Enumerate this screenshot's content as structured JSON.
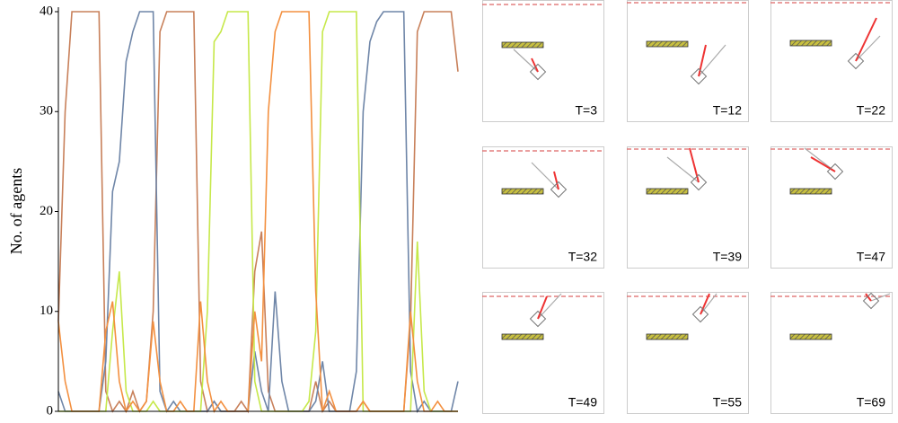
{
  "chart_data": {
    "type": "line",
    "y_label": "No. of agents",
    "x": [
      0,
      1,
      2,
      3,
      4,
      5,
      6,
      7,
      8,
      9,
      10,
      11,
      12,
      13,
      14,
      15,
      16,
      17,
      18,
      19,
      20,
      21,
      22,
      23,
      24,
      25,
      26,
      27,
      28,
      29,
      30,
      31,
      32,
      33,
      34,
      35,
      36,
      37,
      38,
      39,
      40,
      41,
      42,
      43,
      44,
      45,
      46,
      47,
      48,
      49,
      50,
      51,
      52,
      53,
      54,
      55,
      56,
      57,
      58,
      59
    ],
    "xlim": [
      0,
      59
    ],
    "ylim": [
      0,
      40
    ],
    "yticks": [
      0,
      10,
      20,
      30,
      40
    ],
    "series": [
      {
        "color": "#c8805a",
        "values": [
          9,
          30,
          40,
          40,
          40,
          40,
          40,
          2,
          0,
          1,
          0,
          2,
          0,
          1,
          10,
          38,
          40,
          40,
          40,
          40,
          40,
          3,
          0,
          1,
          0,
          0,
          0,
          1,
          0,
          14,
          18,
          2,
          0,
          0,
          0,
          0,
          0,
          0,
          3,
          0,
          1,
          0,
          0,
          0,
          0,
          1,
          0,
          0,
          0,
          0,
          0,
          0,
          9,
          38,
          40,
          40,
          40,
          40,
          40,
          34
        ]
      },
      {
        "color": "#6f86a8",
        "values": [
          2,
          0,
          0,
          0,
          0,
          0,
          0,
          5,
          22,
          25,
          35,
          38,
          40,
          40,
          40,
          2,
          0,
          1,
          0,
          0,
          0,
          0,
          0,
          1,
          0,
          0,
          0,
          0,
          0,
          6,
          2,
          0,
          12,
          3,
          0,
          0,
          0,
          0,
          1,
          5,
          0,
          0,
          0,
          0,
          4,
          30,
          37,
          39,
          40,
          40,
          40,
          40,
          4,
          0,
          1,
          0,
          0,
          0,
          0,
          3
        ]
      },
      {
        "color": "#c6e84a",
        "values": [
          0,
          0,
          0,
          0,
          0,
          0,
          0,
          0,
          8,
          14,
          2,
          0,
          0,
          0,
          1,
          0,
          0,
          0,
          0,
          0,
          0,
          0,
          10,
          37,
          38,
          40,
          40,
          40,
          40,
          3,
          0,
          0,
          0,
          0,
          0,
          0,
          0,
          1,
          8,
          38,
          40,
          40,
          40,
          40,
          40,
          0,
          0,
          0,
          0,
          0,
          0,
          0,
          0,
          17,
          2,
          0,
          0,
          0,
          0,
          0
        ]
      },
      {
        "color": "#f39040",
        "values": [
          9,
          3,
          0,
          0,
          0,
          0,
          0,
          8,
          11,
          3,
          0,
          1,
          0,
          1,
          9,
          3,
          0,
          0,
          1,
          0,
          0,
          11,
          3,
          0,
          1,
          0,
          0,
          0,
          0,
          10,
          5,
          30,
          38,
          40,
          40,
          40,
          40,
          40,
          12,
          0,
          2,
          0,
          0,
          0,
          0,
          1,
          0,
          0,
          0,
          0,
          0,
          0,
          10,
          3,
          0,
          0,
          1,
          0,
          0,
          0
        ]
      }
    ]
  },
  "panels": [
    {
      "label": "T=3"
    },
    {
      "label": "T=12"
    },
    {
      "label": "T=22"
    },
    {
      "label": "T=32"
    },
    {
      "label": "T=39"
    },
    {
      "label": "T=47"
    },
    {
      "label": "T=49"
    },
    {
      "label": "T=55"
    },
    {
      "label": "T=69"
    }
  ]
}
